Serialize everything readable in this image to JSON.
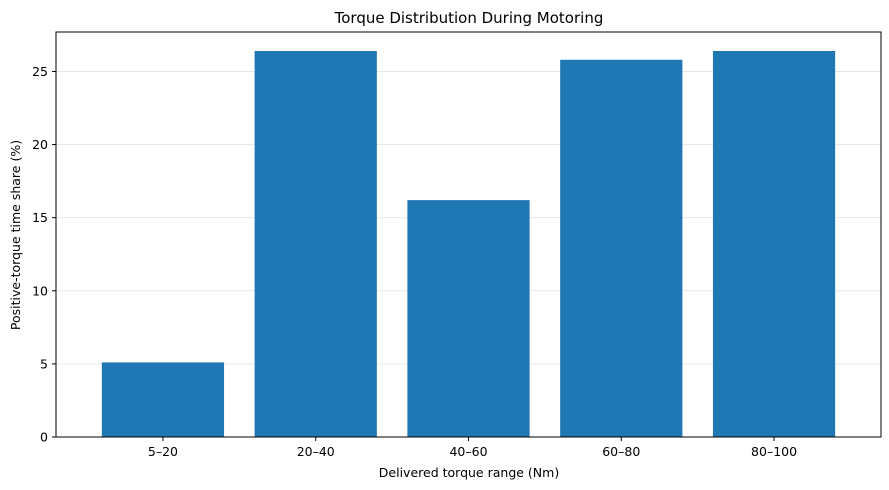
{
  "chart_data": {
    "type": "bar",
    "title": "Torque Distribution During Motoring",
    "xlabel": "Delivered torque range (Nm)",
    "ylabel": "Positive-torque time share (%)",
    "categories": [
      "5–20",
      "20–40",
      "40–60",
      "60–80",
      "80–100"
    ],
    "values": [
      5.1,
      26.4,
      16.2,
      25.8,
      26.4
    ],
    "ylim": [
      0,
      27.7
    ],
    "yticks": [
      0,
      5,
      10,
      15,
      20,
      25
    ],
    "grid": "y",
    "bar_color": "#1f77b4",
    "grid_color": "#e6e6e6",
    "axis_color": "#000000"
  }
}
